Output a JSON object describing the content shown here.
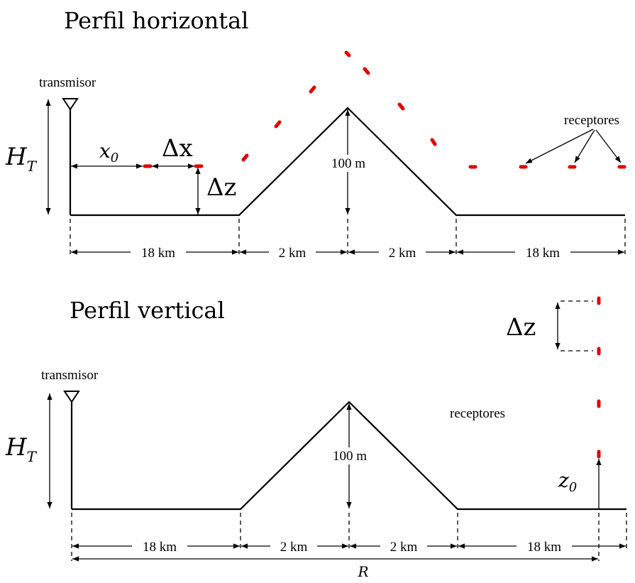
{
  "horizontal": {
    "title": "Perfil horizontal",
    "transmitter_label": "transmisor",
    "receivers_label": "receptores",
    "ht": "H",
    "ht_sub": "T",
    "x0": "x",
    "x0_sub": "0",
    "delta_x": "Δx",
    "delta_z": "Δz",
    "hill_height": "100 m",
    "segments": [
      "18 km",
      "2 km",
      "2 km",
      "18 km"
    ]
  },
  "vertical": {
    "title": "Perfil vertical",
    "transmitter_label": "transmisor",
    "receivers_label": "receptores",
    "ht": "H",
    "ht_sub": "T",
    "z0": "z",
    "z0_sub": "0",
    "delta_z": "Δz",
    "hill_height": "100 m",
    "segments": [
      "18 km",
      "2 km",
      "2 km",
      "18 km"
    ],
    "range": "R"
  },
  "colors": {
    "receivers": "#e10000",
    "lines": "#000000"
  }
}
